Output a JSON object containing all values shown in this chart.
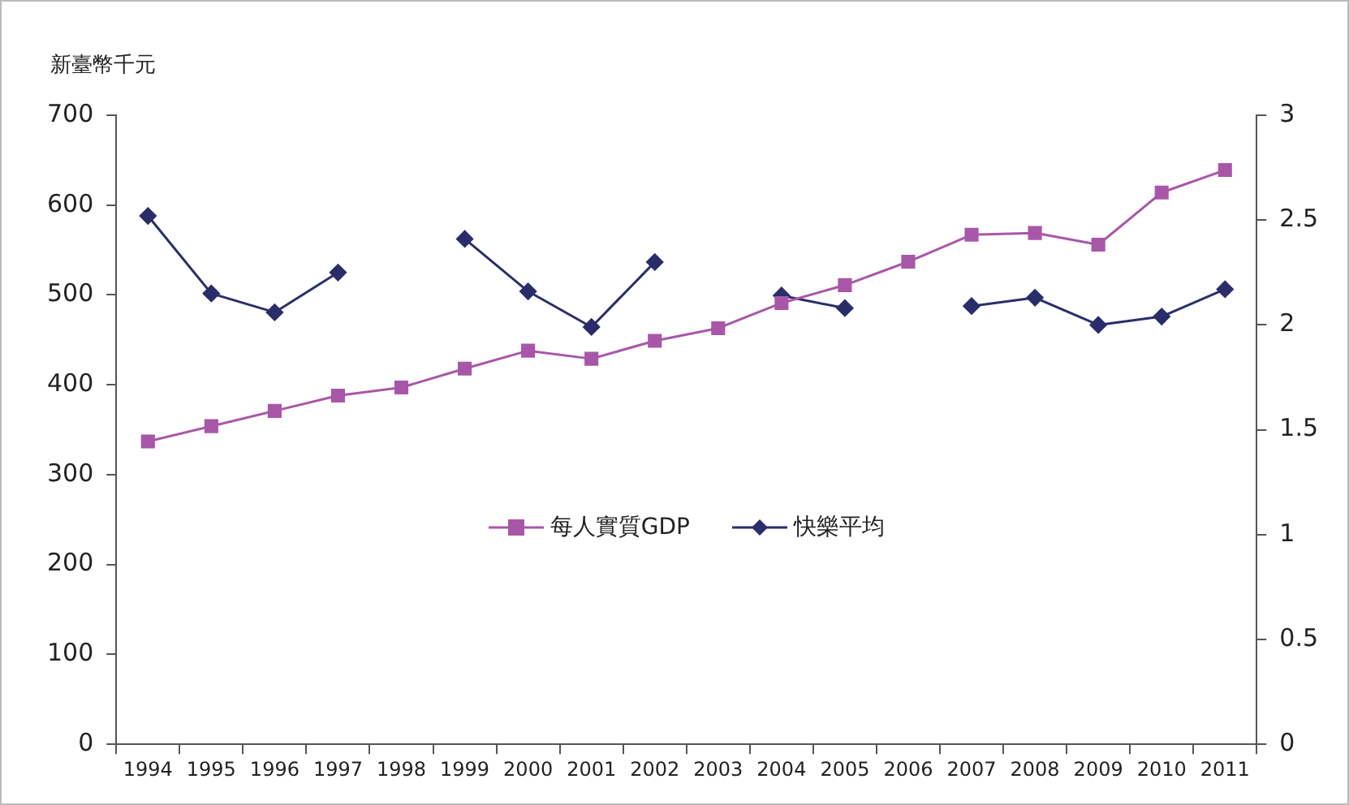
{
  "chart_data": {
    "type": "line",
    "ylabel": "新臺幣千元",
    "categories": [
      "1994",
      "1995",
      "1996",
      "1997",
      "1998",
      "1999",
      "2000",
      "2001",
      "2002",
      "2003",
      "2004",
      "2005",
      "2006",
      "2007",
      "2008",
      "2009",
      "2010",
      "2011"
    ],
    "series": [
      {
        "name": "每人實質GDP",
        "color": "#a857a8",
        "marker": "square",
        "values": [
          337,
          354,
          371,
          388,
          397,
          418,
          438,
          429,
          449,
          463,
          491,
          511,
          537,
          567,
          569,
          556,
          614,
          639
        ]
      },
      {
        "name": "快樂平均",
        "color": "#2b2d6a",
        "marker": "diamond",
        "axis": "y2",
        "values": [
          2.52,
          2.15,
          2.06,
          2.25,
          null,
          2.41,
          2.16,
          1.99,
          2.3,
          null,
          2.14,
          2.08,
          null,
          2.09,
          2.13,
          2.0,
          2.04,
          2.17
        ]
      }
    ],
    "ylim": [
      0,
      700
    ],
    "yticks": [
      0,
      100,
      200,
      300,
      400,
      500,
      600,
      700
    ],
    "y2lim": [
      0,
      3
    ],
    "y2ticks": [
      0,
      0.5,
      1,
      1.5,
      2,
      2.5,
      3
    ],
    "grid": false,
    "legend": "center",
    "line_style": "solid"
  }
}
